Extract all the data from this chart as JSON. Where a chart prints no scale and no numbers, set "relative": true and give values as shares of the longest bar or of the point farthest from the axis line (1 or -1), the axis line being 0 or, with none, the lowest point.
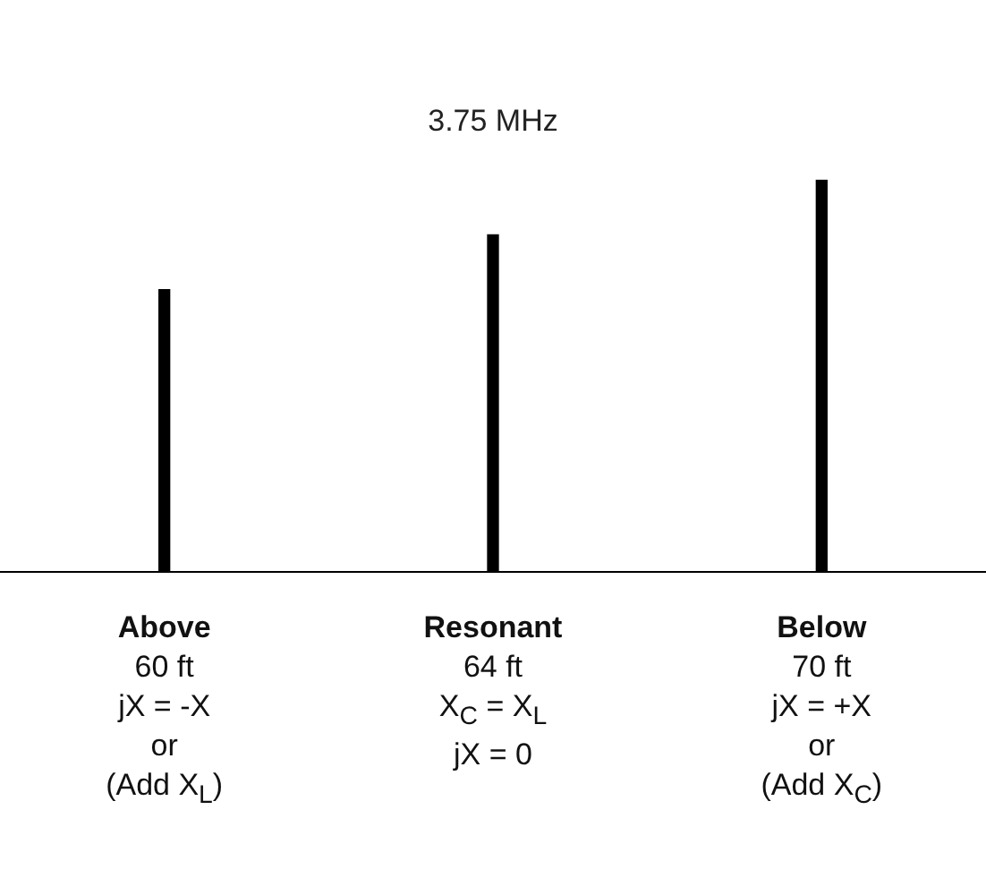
{
  "chart_data": {
    "type": "bar",
    "title": "3.75 MHz",
    "relative": true,
    "color": "#000000",
    "categories": [
      "Above\n60 ft\njX = -X\nor\n(Add X$_{L}$)",
      "Resonant\n64 ft\nX$_{C}$ = X$_{L}$\njX = 0",
      "Below\n70 ft\njX = +X\nor\n(Add X$_{C}$)"
    ],
    "values": [
      0.72,
      0.86,
      1
    ],
    "legend": false,
    "grid": false
  }
}
